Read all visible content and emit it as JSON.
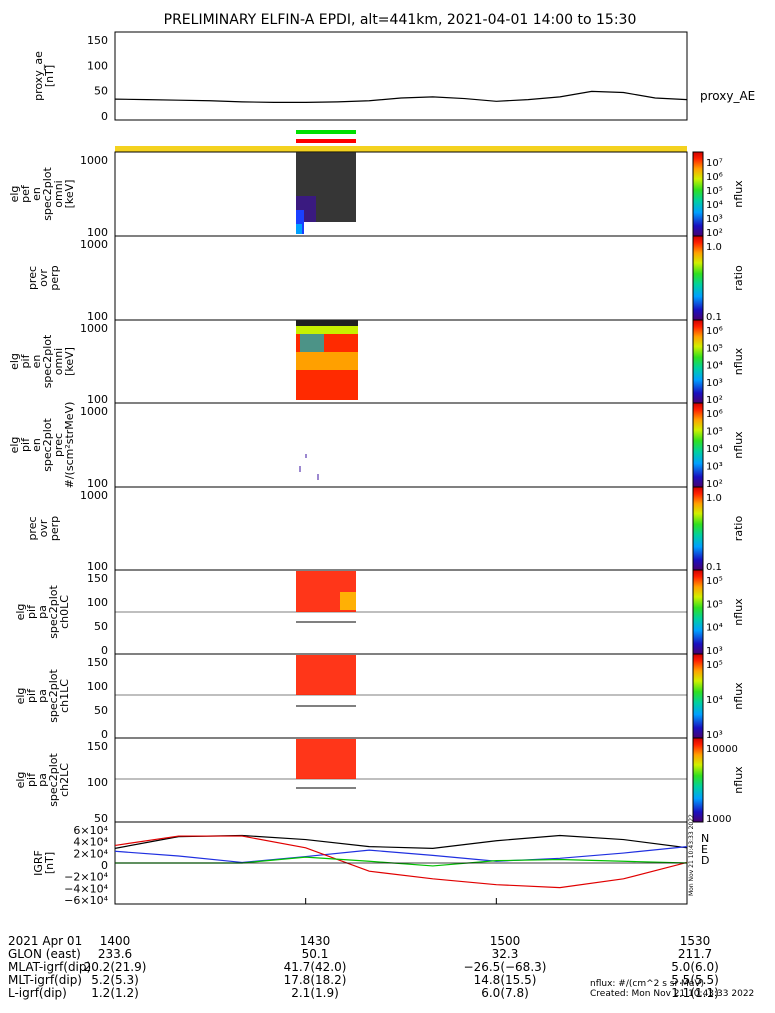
{
  "title": "PRELIMINARY ELFIN-A EPDI, alt=441km, 2021-04-01 14:00 to 15:30",
  "time_axis": {
    "start_min": 0,
    "end_min": 90,
    "ticks": [
      "1400",
      "1430",
      "1500",
      "1530"
    ]
  },
  "panels": [
    {
      "id": "ae",
      "ylabel": [
        "proxy_ae",
        "[nT]"
      ],
      "yticks": [
        "150",
        "100",
        "50",
        "0"
      ],
      "rlabel": "proxy_AE"
    },
    {
      "id": "pef",
      "ylabel": [
        "elg",
        "pef",
        "en",
        "spec2plot",
        "omni",
        "[keV]"
      ],
      "yticks": [
        "1000",
        "100"
      ],
      "cb_label": "nflux",
      "cb_ticks": [
        "10⁷",
        "10⁶",
        "10⁵",
        "10⁴",
        "10³",
        "10²"
      ]
    },
    {
      "id": "ratio1",
      "ylabel": [
        "prec",
        "ovr",
        "perp"
      ],
      "yticks": [
        "1000",
        "100"
      ],
      "cb_label": "ratio",
      "cb_ticks": [
        "1.0",
        "0.1"
      ]
    },
    {
      "id": "pif",
      "ylabel": [
        "elg",
        "pif",
        "en",
        "spec2plot",
        "omni",
        "[keV]"
      ],
      "yticks": [
        "1000",
        "100"
      ],
      "cb_label": "nflux",
      "cb_ticks": [
        "10⁶",
        "10⁵",
        "10⁴",
        "10³",
        "10²"
      ]
    },
    {
      "id": "prec",
      "ylabel": [
        "elg",
        "pif",
        "en",
        "spec2plot",
        "prec",
        "#/(scm²strMeV)"
      ],
      "yticks": [
        "1000",
        "100"
      ],
      "cb_label": "nflux",
      "cb_ticks": [
        "10⁶",
        "10⁵",
        "10⁴",
        "10³",
        "10²"
      ]
    },
    {
      "id": "ratio2",
      "ylabel": [
        "prec",
        "ovr",
        "perp"
      ],
      "yticks": [
        "1000",
        "100"
      ],
      "cb_label": "ratio",
      "cb_ticks": [
        "1.0",
        "0.1"
      ]
    },
    {
      "id": "ch0",
      "ylabel": [
        "elg",
        "pif",
        "pa",
        "spec2plot",
        "ch0LC"
      ],
      "yticks": [
        "150",
        "100",
        "50",
        "0"
      ],
      "cb_label": "nflux",
      "cb_ticks": [
        "10⁵",
        "10⁵",
        "10⁴",
        "10³"
      ]
    },
    {
      "id": "ch1",
      "ylabel": [
        "elg",
        "pif",
        "pa",
        "spec2plot",
        "ch1LC"
      ],
      "yticks": [
        "150",
        "100",
        "50",
        "0"
      ],
      "cb_label": "nflux",
      "cb_ticks": [
        "10⁵",
        "10⁴",
        "10³"
      ]
    },
    {
      "id": "ch2",
      "ylabel": [
        "elg",
        "pif",
        "pa",
        "spec2plot",
        "ch2LC"
      ],
      "yticks": [
        "150",
        "100",
        "50"
      ],
      "cb_label": "nflux",
      "cb_ticks": [
        "10000",
        "1000"
      ]
    },
    {
      "id": "igrf",
      "ylabel": [
        "IGRF",
        "[nT]"
      ],
      "yticks": [
        "6×10⁴",
        "4×10⁴",
        "2×10⁴",
        "0",
        "−2×10⁴",
        "−4×10⁴",
        "−6×10⁴"
      ],
      "legend": [
        "N",
        "E",
        "D"
      ],
      "created_vertical": "Mon Nov 21 10:43:33 2022"
    }
  ],
  "chart_data": [
    {
      "type": "line",
      "panel": "ae",
      "x_min": [
        0,
        5,
        10,
        15,
        20,
        25,
        30,
        35,
        40,
        45,
        50,
        55,
        60,
        65,
        70,
        75,
        80,
        85,
        90
      ],
      "series": [
        {
          "name": "proxy_AE",
          "values": [
            38,
            37,
            36,
            35,
            33,
            32,
            32,
            33,
            35,
            40,
            42,
            39,
            34,
            37,
            42,
            52,
            50,
            40,
            37
          ]
        }
      ],
      "ylim": [
        0,
        160
      ]
    },
    {
      "type": "line",
      "panel": "igrf",
      "x_min": [
        0,
        10,
        20,
        30,
        40,
        50,
        60,
        70,
        80,
        90
      ],
      "series": [
        {
          "name": "N",
          "values": [
            25000,
            45000,
            47000,
            40000,
            28000,
            25000,
            38000,
            47000,
            40000,
            26000
          ]
        },
        {
          "name": "E",
          "values": [
            20000,
            12000,
            1000,
            11000,
            22000,
            13000,
            3000,
            8000,
            17000,
            28000
          ]
        },
        {
          "name": "D",
          "values": [
            30000,
            46000,
            46000,
            26000,
            -14000,
            -27000,
            -37000,
            -42000,
            -27000,
            1000
          ]
        },
        {
          "name": "(green)",
          "values": [
            0,
            0,
            0,
            10000,
            3000,
            -5000,
            4000,
            6000,
            3000,
            0
          ]
        }
      ],
      "ylim": [
        -70000,
        70000
      ]
    },
    {
      "type": "table",
      "panel": "ephemeris",
      "rows": [
        {
          "label": "2021 Apr 01",
          "values": [
            "1400",
            "1430",
            "1500",
            "1530"
          ]
        },
        {
          "label": "GLON (east)",
          "values": [
            "233.6",
            "50.1",
            "32.3",
            "211.7"
          ]
        },
        {
          "label": "MLAT-igrf(dip)",
          "values": [
            "20.2(21.9)",
            "41.7(42.0)",
            "−26.5(−68.3)",
            "5.0(6.0)"
          ]
        },
        {
          "label": "MLT-igrf(dip)",
          "values": [
            "5.2(5.3)",
            "17.8(18.2)",
            "14.8(15.5)",
            "5.5(5.5)"
          ]
        },
        {
          "label": "L-igrf(dip)",
          "values": [
            "1.2(1.2)",
            "2.1(1.9)",
            "6.0(7.8)",
            "1.1(1.1)"
          ]
        }
      ]
    }
  ],
  "footer": {
    "units": "nflux: #/(cm^2 s sr MeV)",
    "created": "Created: Mon Nov 21 10:43:33 2022"
  },
  "colors": {
    "orbit_bar": "#f4d21f",
    "green_marks": "#00e000",
    "red_marks": "#ff0000",
    "N": "#000000",
    "E": "#2030e0",
    "D": "#e00000"
  }
}
